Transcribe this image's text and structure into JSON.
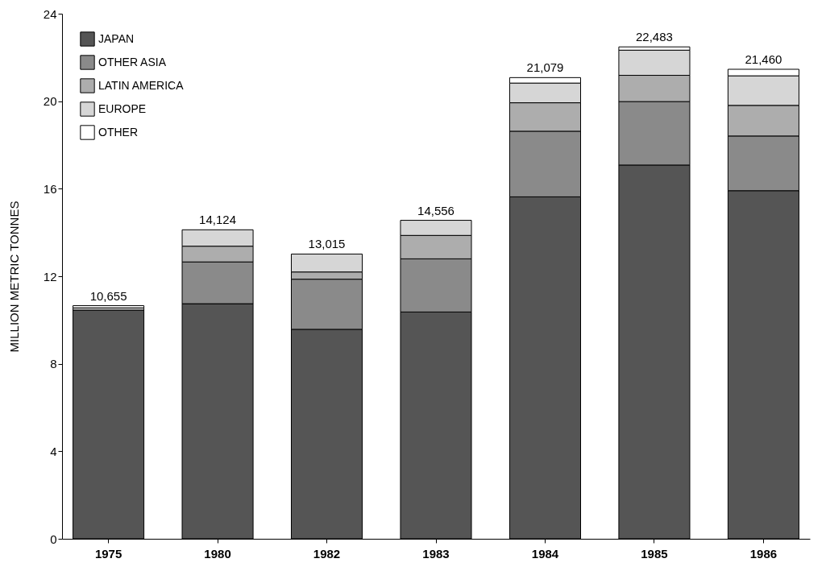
{
  "chart_data": {
    "type": "bar",
    "stacked": true,
    "ylabel": "MILLION METRIC TONNES",
    "categories": [
      "1975",
      "1980",
      "1982",
      "1983",
      "1984",
      "1985",
      "1986"
    ],
    "series": [
      {
        "name": "JAPAN",
        "color": "#555555",
        "values": [
          10.455,
          10.744,
          9.575,
          10.366,
          15.629,
          17.083,
          15.91
        ]
      },
      {
        "name": "OTHER ASIA",
        "color": "#8a8a8a",
        "values": [
          null,
          1.91,
          2.29,
          2.43,
          3.0,
          2.9,
          2.5
        ]
      },
      {
        "name": "LATIN AMERICA",
        "color": "#adadad",
        "values": [
          null,
          0.72,
          0.33,
          1.07,
          1.3,
          1.2,
          1.4
        ]
      },
      {
        "name": "EUROPE",
        "color": "#d6d6d6",
        "values": [
          0.1,
          0.75,
          0.82,
          0.69,
          0.9,
          1.15,
          1.35
        ]
      },
      {
        "name": "OTHER",
        "color": "#ffffff",
        "values": [
          0.1,
          null,
          null,
          null,
          0.25,
          0.15,
          0.3
        ]
      }
    ],
    "totals": [
      "10,655",
      "14,124",
      "13,015",
      "14,556",
      "21,079",
      "22,483",
      "21,460"
    ],
    "ylim": [
      0,
      24
    ],
    "yticks": [
      0,
      4,
      8,
      12,
      16,
      20,
      24
    ],
    "grid": false,
    "legend": "top left"
  }
}
